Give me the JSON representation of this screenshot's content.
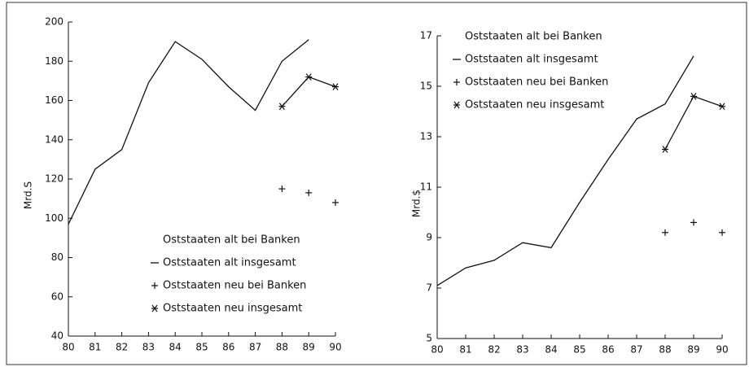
{
  "chart_data": [
    {
      "type": "line",
      "ylabel": "Mrd.S",
      "legend": "lower right",
      "x": [
        80,
        81,
        82,
        83,
        84,
        85,
        86,
        87,
        88,
        89,
        90
      ],
      "xlim": [
        80,
        90
      ],
      "xticks": [
        80,
        81,
        82,
        83,
        84,
        85,
        86,
        87,
        88,
        89,
        90
      ],
      "ylim": [
        40,
        200
      ],
      "yticks": [
        40,
        60,
        80,
        100,
        120,
        140,
        160,
        180,
        200
      ],
      "series": [
        {
          "name": "Oststaaten alt bei Banken",
          "style": "none",
          "color": "#111111",
          "values": [
            null,
            null,
            null,
            null,
            null,
            null,
            null,
            null,
            null,
            null,
            null
          ]
        },
        {
          "name": "Oststaaten alt insgesamt",
          "style": "line",
          "color": "#111111",
          "values": [
            97,
            125,
            135,
            169,
            190,
            181,
            167,
            155,
            180,
            191,
            null
          ]
        },
        {
          "name": "Oststaaten neu bei Banken",
          "style": "plus",
          "color": "#111111",
          "values": [
            null,
            null,
            null,
            null,
            null,
            null,
            null,
            null,
            115,
            113,
            108
          ]
        },
        {
          "name": "Oststaaten neu insgesamt",
          "style": "star",
          "color": "#111111",
          "values": [
            null,
            null,
            null,
            null,
            null,
            null,
            null,
            null,
            157,
            172,
            167
          ]
        }
      ]
    },
    {
      "type": "line",
      "ylabel": "Mrd.$",
      "legend": "upper left",
      "x": [
        80,
        81,
        82,
        83,
        84,
        85,
        86,
        87,
        88,
        89,
        90
      ],
      "xlim": [
        80,
        90
      ],
      "xticks": [
        80,
        81,
        82,
        83,
        84,
        85,
        86,
        87,
        88,
        89,
        90
      ],
      "ylim": [
        5,
        17
      ],
      "yticks": [
        5,
        7,
        9,
        11,
        13,
        15,
        17
      ],
      "series": [
        {
          "name": "Oststaaten alt bei Banken",
          "style": "none",
          "color": "#111111",
          "values": [
            null,
            null,
            null,
            null,
            null,
            null,
            null,
            null,
            null,
            null,
            null
          ]
        },
        {
          "name": "Oststaaten alt insgesamt",
          "style": "line",
          "color": "#111111",
          "values": [
            7.1,
            7.8,
            8.1,
            8.8,
            8.6,
            10.4,
            12.1,
            13.7,
            14.3,
            16.2,
            null
          ]
        },
        {
          "name": "Oststaaten neu bei Banken",
          "style": "plus",
          "color": "#111111",
          "values": [
            null,
            null,
            null,
            null,
            null,
            null,
            null,
            null,
            9.2,
            9.6,
            9.2
          ]
        },
        {
          "name": "Oststaaten neu insgesamt",
          "style": "star",
          "color": "#111111",
          "values": [
            null,
            null,
            null,
            null,
            null,
            null,
            null,
            null,
            12.5,
            14.6,
            14.2
          ]
        }
      ]
    }
  ]
}
